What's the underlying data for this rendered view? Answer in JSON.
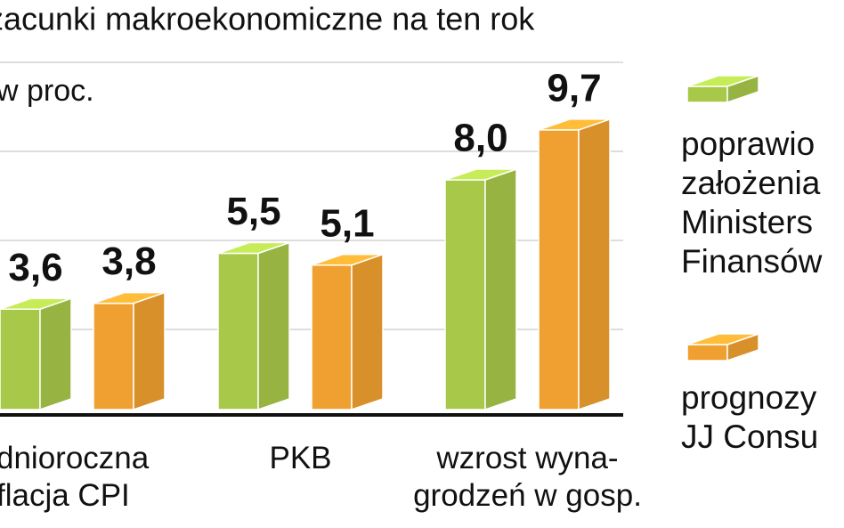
{
  "chart_data": {
    "type": "bar3d",
    "title": "zacunki makroekonomiczne na ten rok",
    "subtitle": "w proc.",
    "categories": [
      "dnioroczna\nflacja CPI",
      "PKB",
      "wzrost wyna-\ngrodzeń w gosp."
    ],
    "ylim": [
      0,
      12
    ],
    "series": [
      {
        "name": "poprawio\nzałożenia\nMinisters\nFinansów",
        "color": "#a8c84a",
        "values": [
          3.6,
          5.5,
          8.0
        ],
        "value_labels": [
          "3,6",
          "5,5",
          "8,0"
        ]
      },
      {
        "name": "prognozy\nJJ Consu",
        "color": "#f0a030",
        "values": [
          3.8,
          5.1,
          9.7
        ],
        "value_labels": [
          "3,8",
          "5,1",
          "9,7"
        ]
      }
    ]
  }
}
